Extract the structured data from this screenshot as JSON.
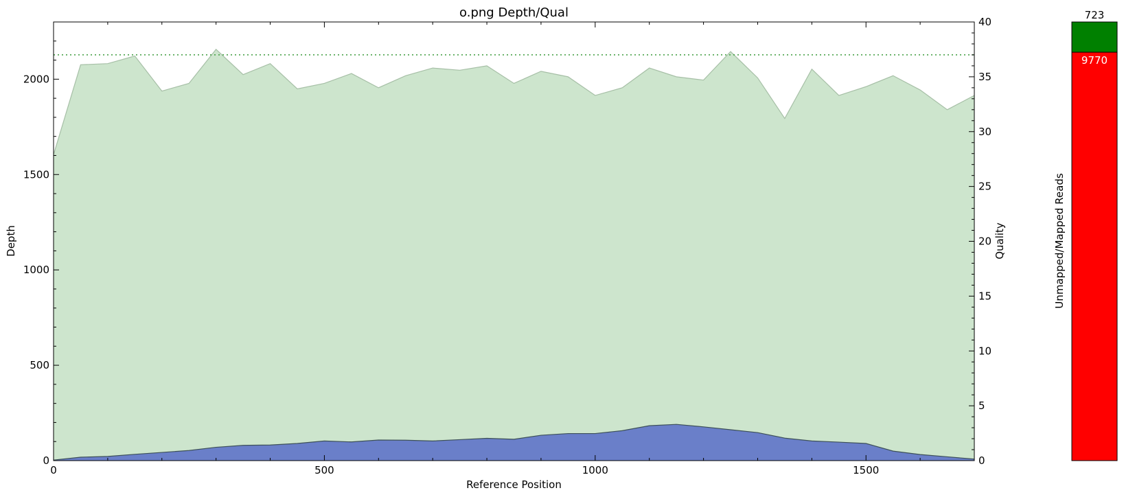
{
  "chart_data": [
    {
      "type": "area",
      "title": "o.png Depth/Qual",
      "xlabel": "Reference Position",
      "ylabel": "Depth",
      "y2label": "Quality",
      "xlim": [
        0,
        1700
      ],
      "ylim": [
        0,
        2300
      ],
      "y2lim": [
        0,
        40
      ],
      "x_ticks": [
        0,
        500,
        1000,
        1500
      ],
      "y_ticks": [
        0,
        500,
        1000,
        1500,
        2000
      ],
      "y2_ticks": [
        0,
        5,
        10,
        15,
        20,
        25,
        30,
        35,
        40
      ],
      "grid": false,
      "quality_reference_line": 37,
      "colors": {
        "depth_fill": "#6a7fc9",
        "depth_line": "#3d5058",
        "quality_fill": "#cde5cd",
        "quality_line": "#a6bfa6",
        "reference_line": "#3a9a3a"
      },
      "series": [
        {
          "axis": "left",
          "x": [
            0,
            50,
            100,
            150,
            200,
            250,
            300,
            350,
            400,
            450,
            500,
            550,
            600,
            650,
            700,
            750,
            800,
            850,
            900,
            950,
            1000,
            1050,
            1100,
            1150,
            1200,
            1250,
            1300,
            1350,
            1400,
            1450,
            1500,
            1550,
            1600,
            1650,
            1700
          ],
          "values": [
            3,
            18,
            22,
            33,
            43,
            53,
            70,
            80,
            82,
            90,
            103,
            98,
            108,
            107,
            103,
            110,
            117,
            112,
            133,
            142,
            142,
            157,
            183,
            190,
            177,
            162,
            147,
            118,
            103,
            97,
            90,
            50,
            32,
            20,
            8
          ]
        },
        {
          "axis": "right",
          "x": [
            0,
            50,
            100,
            150,
            200,
            250,
            300,
            350,
            400,
            450,
            500,
            550,
            600,
            650,
            700,
            750,
            800,
            850,
            900,
            950,
            1000,
            1050,
            1100,
            1150,
            1200,
            1250,
            1300,
            1350,
            1400,
            1450,
            1500,
            1550,
            1600,
            1650,
            1700
          ],
          "values": [
            27.9,
            36.1,
            36.2,
            36.9,
            33.7,
            34.4,
            37.5,
            35.2,
            36.2,
            33.9,
            34.4,
            35.3,
            34.0,
            35.1,
            35.8,
            35.6,
            36.0,
            34.4,
            35.5,
            35.0,
            33.3,
            34.0,
            35.8,
            35.0,
            34.7,
            37.3,
            34.9,
            31.2,
            35.7,
            33.3,
            34.1,
            35.1,
            33.8,
            32.0,
            33.3
          ]
        }
      ]
    },
    {
      "type": "bar",
      "ylabel": "Unmapped/Mapped Reads",
      "stack": [
        {
          "value": 9770,
          "color": "#ff0000"
        },
        {
          "value": 723,
          "color": "#008000"
        }
      ]
    }
  ]
}
